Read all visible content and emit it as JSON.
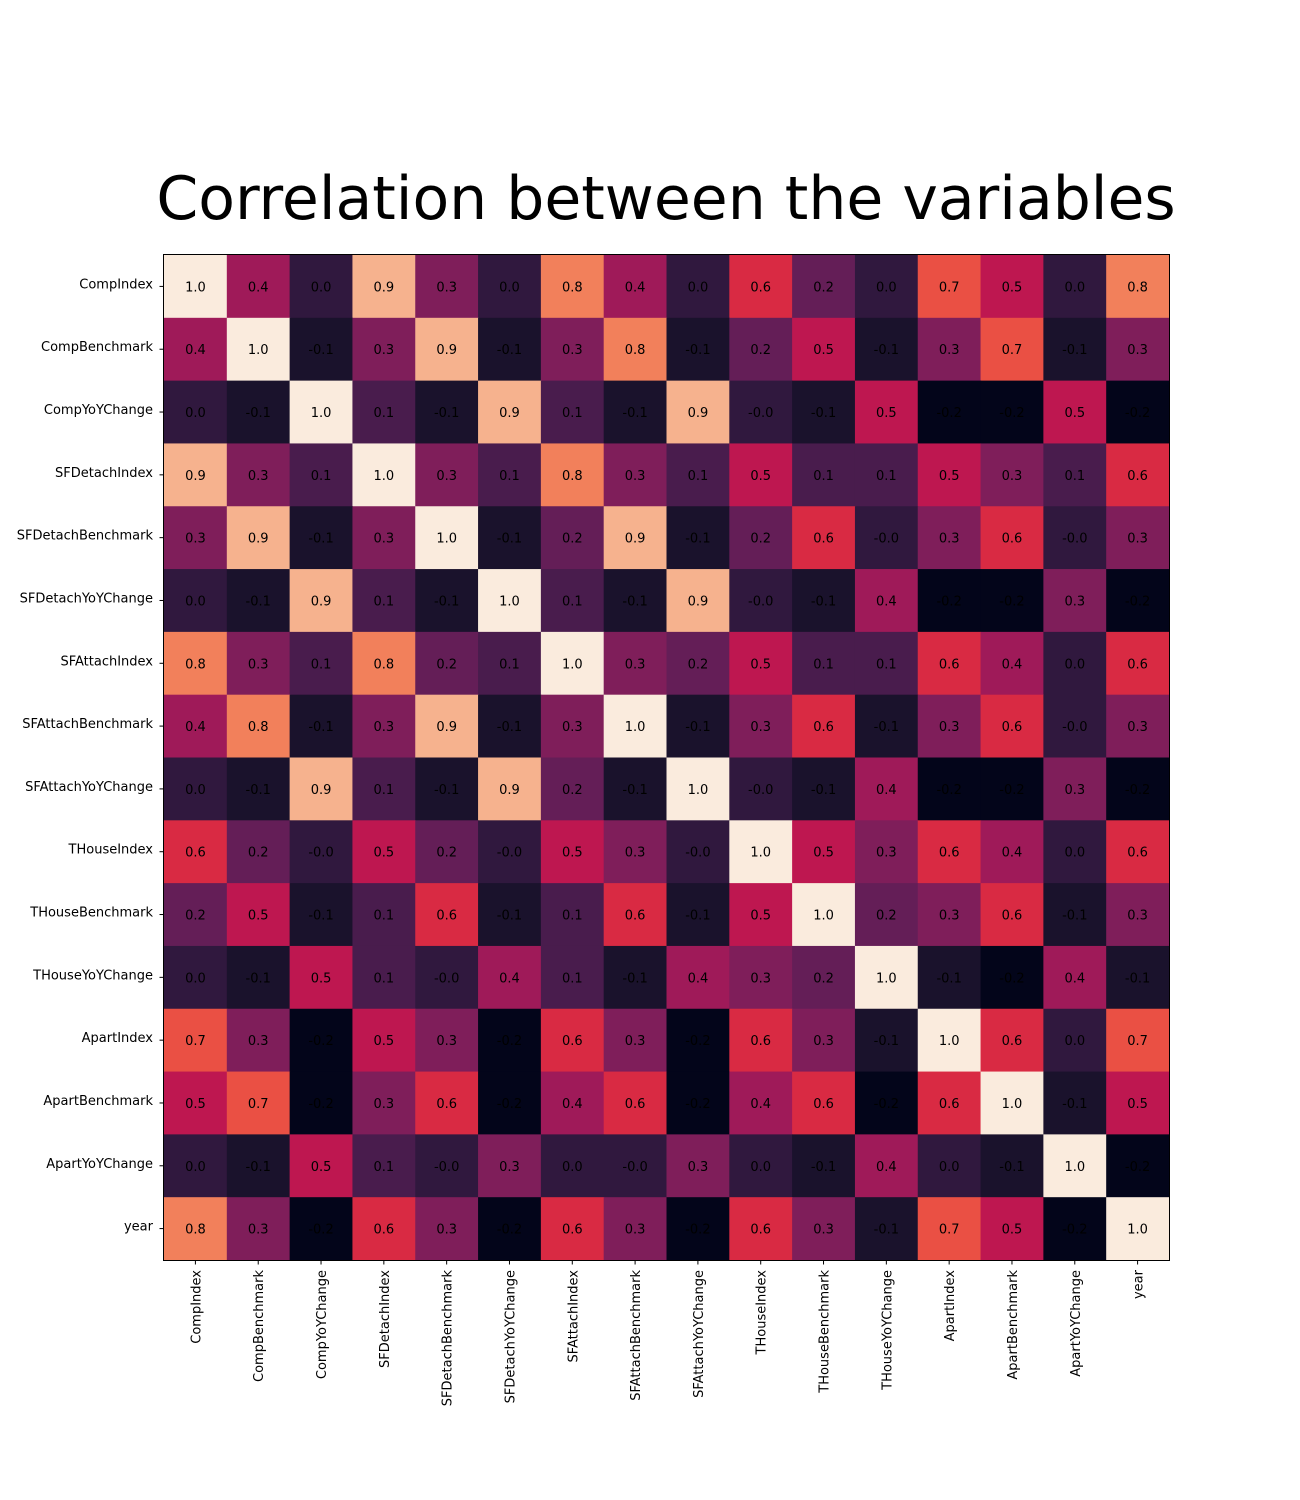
{
  "chart_data": {
    "type": "heatmap",
    "title": "Correlation between the variables",
    "xlabel": "",
    "ylabel": "",
    "grid": false,
    "legend": "none",
    "colormap": "rocket",
    "value_range": [
      -0.2,
      1.0
    ],
    "x_categories": [
      "CompIndex",
      "CompBenchmark",
      "CompYoYChange",
      "SFDetachIndex",
      "SFDetachBenchmark",
      "SFDetachYoYChange",
      "SFAttachIndex",
      "SFAttachBenchmark",
      "SFAttachYoYChange",
      "THouseIndex",
      "THouseBenchmark",
      "THouseYoYChange",
      "ApartIndex",
      "ApartBenchmark",
      "ApartYoYChange",
      "year"
    ],
    "y_categories": [
      "CompIndex",
      "CompBenchmark",
      "CompYoYChange",
      "SFDetachIndex",
      "SFDetachBenchmark",
      "SFDetachYoYChange",
      "SFAttachIndex",
      "SFAttachBenchmark",
      "SFAttachYoYChange",
      "THouseIndex",
      "THouseBenchmark",
      "THouseYoYChange",
      "ApartIndex",
      "ApartBenchmark",
      "ApartYoYChange",
      "year"
    ],
    "values": [
      [
        1.0,
        0.4,
        0.0,
        0.9,
        0.3,
        0.0,
        0.8,
        0.4,
        0.0,
        0.6,
        0.2,
        0.0,
        0.7,
        0.5,
        0.0,
        0.8
      ],
      [
        0.4,
        1.0,
        -0.1,
        0.3,
        0.9,
        -0.1,
        0.3,
        0.8,
        -0.1,
        0.2,
        0.5,
        -0.1,
        0.3,
        0.7,
        -0.1,
        0.3
      ],
      [
        0.0,
        -0.1,
        1.0,
        0.1,
        -0.1,
        0.9,
        0.1,
        -0.1,
        0.9,
        -0.0,
        -0.1,
        0.5,
        -0.2,
        -0.2,
        0.5,
        -0.2
      ],
      [
        0.9,
        0.3,
        0.1,
        1.0,
        0.3,
        0.1,
        0.8,
        0.3,
        0.1,
        0.5,
        0.1,
        0.1,
        0.5,
        0.3,
        0.1,
        0.6
      ],
      [
        0.3,
        0.9,
        -0.1,
        0.3,
        1.0,
        -0.1,
        0.2,
        0.9,
        -0.1,
        0.2,
        0.6,
        -0.0,
        0.3,
        0.6,
        -0.0,
        0.3
      ],
      [
        0.0,
        -0.1,
        0.9,
        0.1,
        -0.1,
        1.0,
        0.1,
        -0.1,
        0.9,
        -0.0,
        -0.1,
        0.4,
        -0.2,
        -0.2,
        0.3,
        -0.2
      ],
      [
        0.8,
        0.3,
        0.1,
        0.8,
        0.2,
        0.1,
        1.0,
        0.3,
        0.2,
        0.5,
        0.1,
        0.1,
        0.6,
        0.4,
        0.0,
        0.6
      ],
      [
        0.4,
        0.8,
        -0.1,
        0.3,
        0.9,
        -0.1,
        0.3,
        1.0,
        -0.1,
        0.3,
        0.6,
        -0.1,
        0.3,
        0.6,
        -0.0,
        0.3
      ],
      [
        0.0,
        -0.1,
        0.9,
        0.1,
        -0.1,
        0.9,
        0.2,
        -0.1,
        1.0,
        -0.0,
        -0.1,
        0.4,
        -0.2,
        -0.2,
        0.3,
        -0.2
      ],
      [
        0.6,
        0.2,
        -0.0,
        0.5,
        0.2,
        -0.0,
        0.5,
        0.3,
        -0.0,
        1.0,
        0.5,
        0.3,
        0.6,
        0.4,
        0.0,
        0.6
      ],
      [
        0.2,
        0.5,
        -0.1,
        0.1,
        0.6,
        -0.1,
        0.1,
        0.6,
        -0.1,
        0.5,
        1.0,
        0.2,
        0.3,
        0.6,
        -0.1,
        0.3
      ],
      [
        0.0,
        -0.1,
        0.5,
        0.1,
        -0.0,
        0.4,
        0.1,
        -0.1,
        0.4,
        0.3,
        0.2,
        1.0,
        -0.1,
        -0.2,
        0.4,
        -0.1
      ],
      [
        0.7,
        0.3,
        -0.2,
        0.5,
        0.3,
        -0.2,
        0.6,
        0.3,
        -0.2,
        0.6,
        0.3,
        -0.1,
        1.0,
        0.6,
        0.0,
        0.7
      ],
      [
        0.5,
        0.7,
        -0.2,
        0.3,
        0.6,
        -0.2,
        0.4,
        0.6,
        -0.2,
        0.4,
        0.6,
        -0.2,
        0.6,
        1.0,
        -0.1,
        0.5
      ],
      [
        0.0,
        -0.1,
        0.5,
        0.1,
        -0.0,
        0.3,
        0.0,
        -0.0,
        0.3,
        0.0,
        -0.1,
        0.4,
        0.0,
        -0.1,
        1.0,
        -0.2
      ],
      [
        0.8,
        0.3,
        -0.2,
        0.6,
        0.3,
        -0.2,
        0.6,
        0.3,
        -0.2,
        0.6,
        0.3,
        -0.1,
        0.7,
        0.5,
        -0.2,
        1.0
      ]
    ]
  }
}
